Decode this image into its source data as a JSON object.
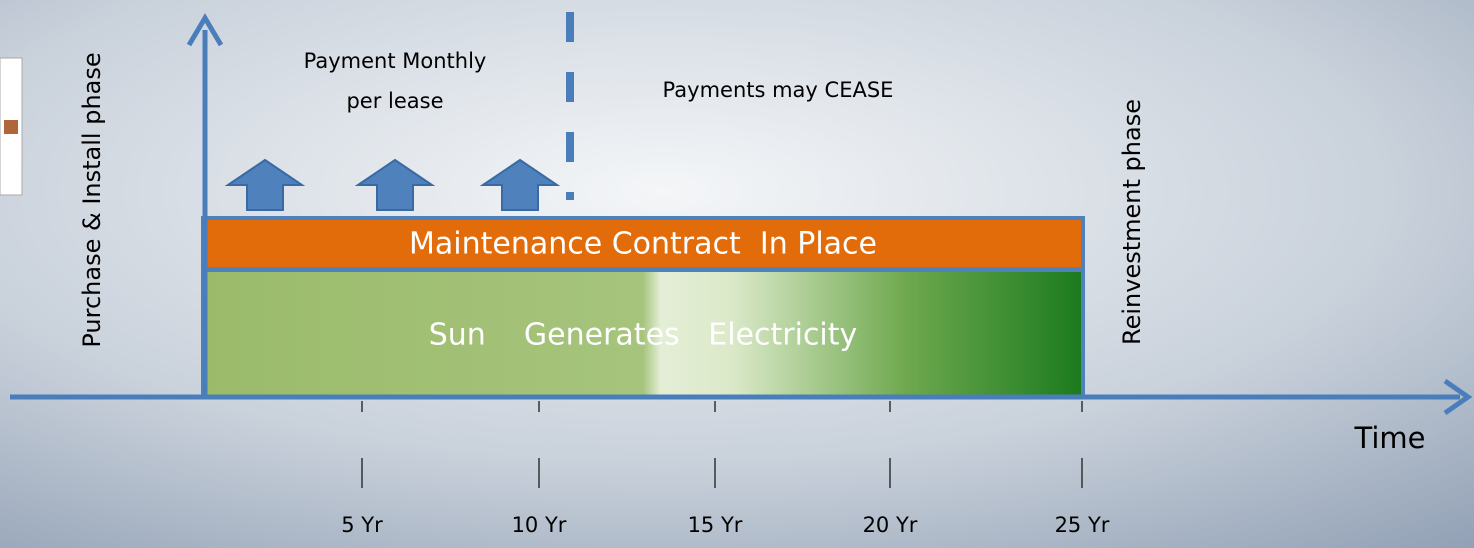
{
  "diagram": {
    "y_axis_label": "Purchase & Install phase",
    "x_axis_label": "Time",
    "payment_note": [
      "Payment Monthly",
      "per lease"
    ],
    "cease_note": "Payments may CEASE",
    "reinvestment_label": "Reinvestment phase",
    "maintenance_bar": "Maintenance Contract  In Place",
    "generation_bar": "Sun    Generates   Electricity",
    "time_ticks": [
      "5 Yr",
      "10 Yr",
      "15 Yr",
      "20 Yr",
      "25 Yr"
    ]
  }
}
